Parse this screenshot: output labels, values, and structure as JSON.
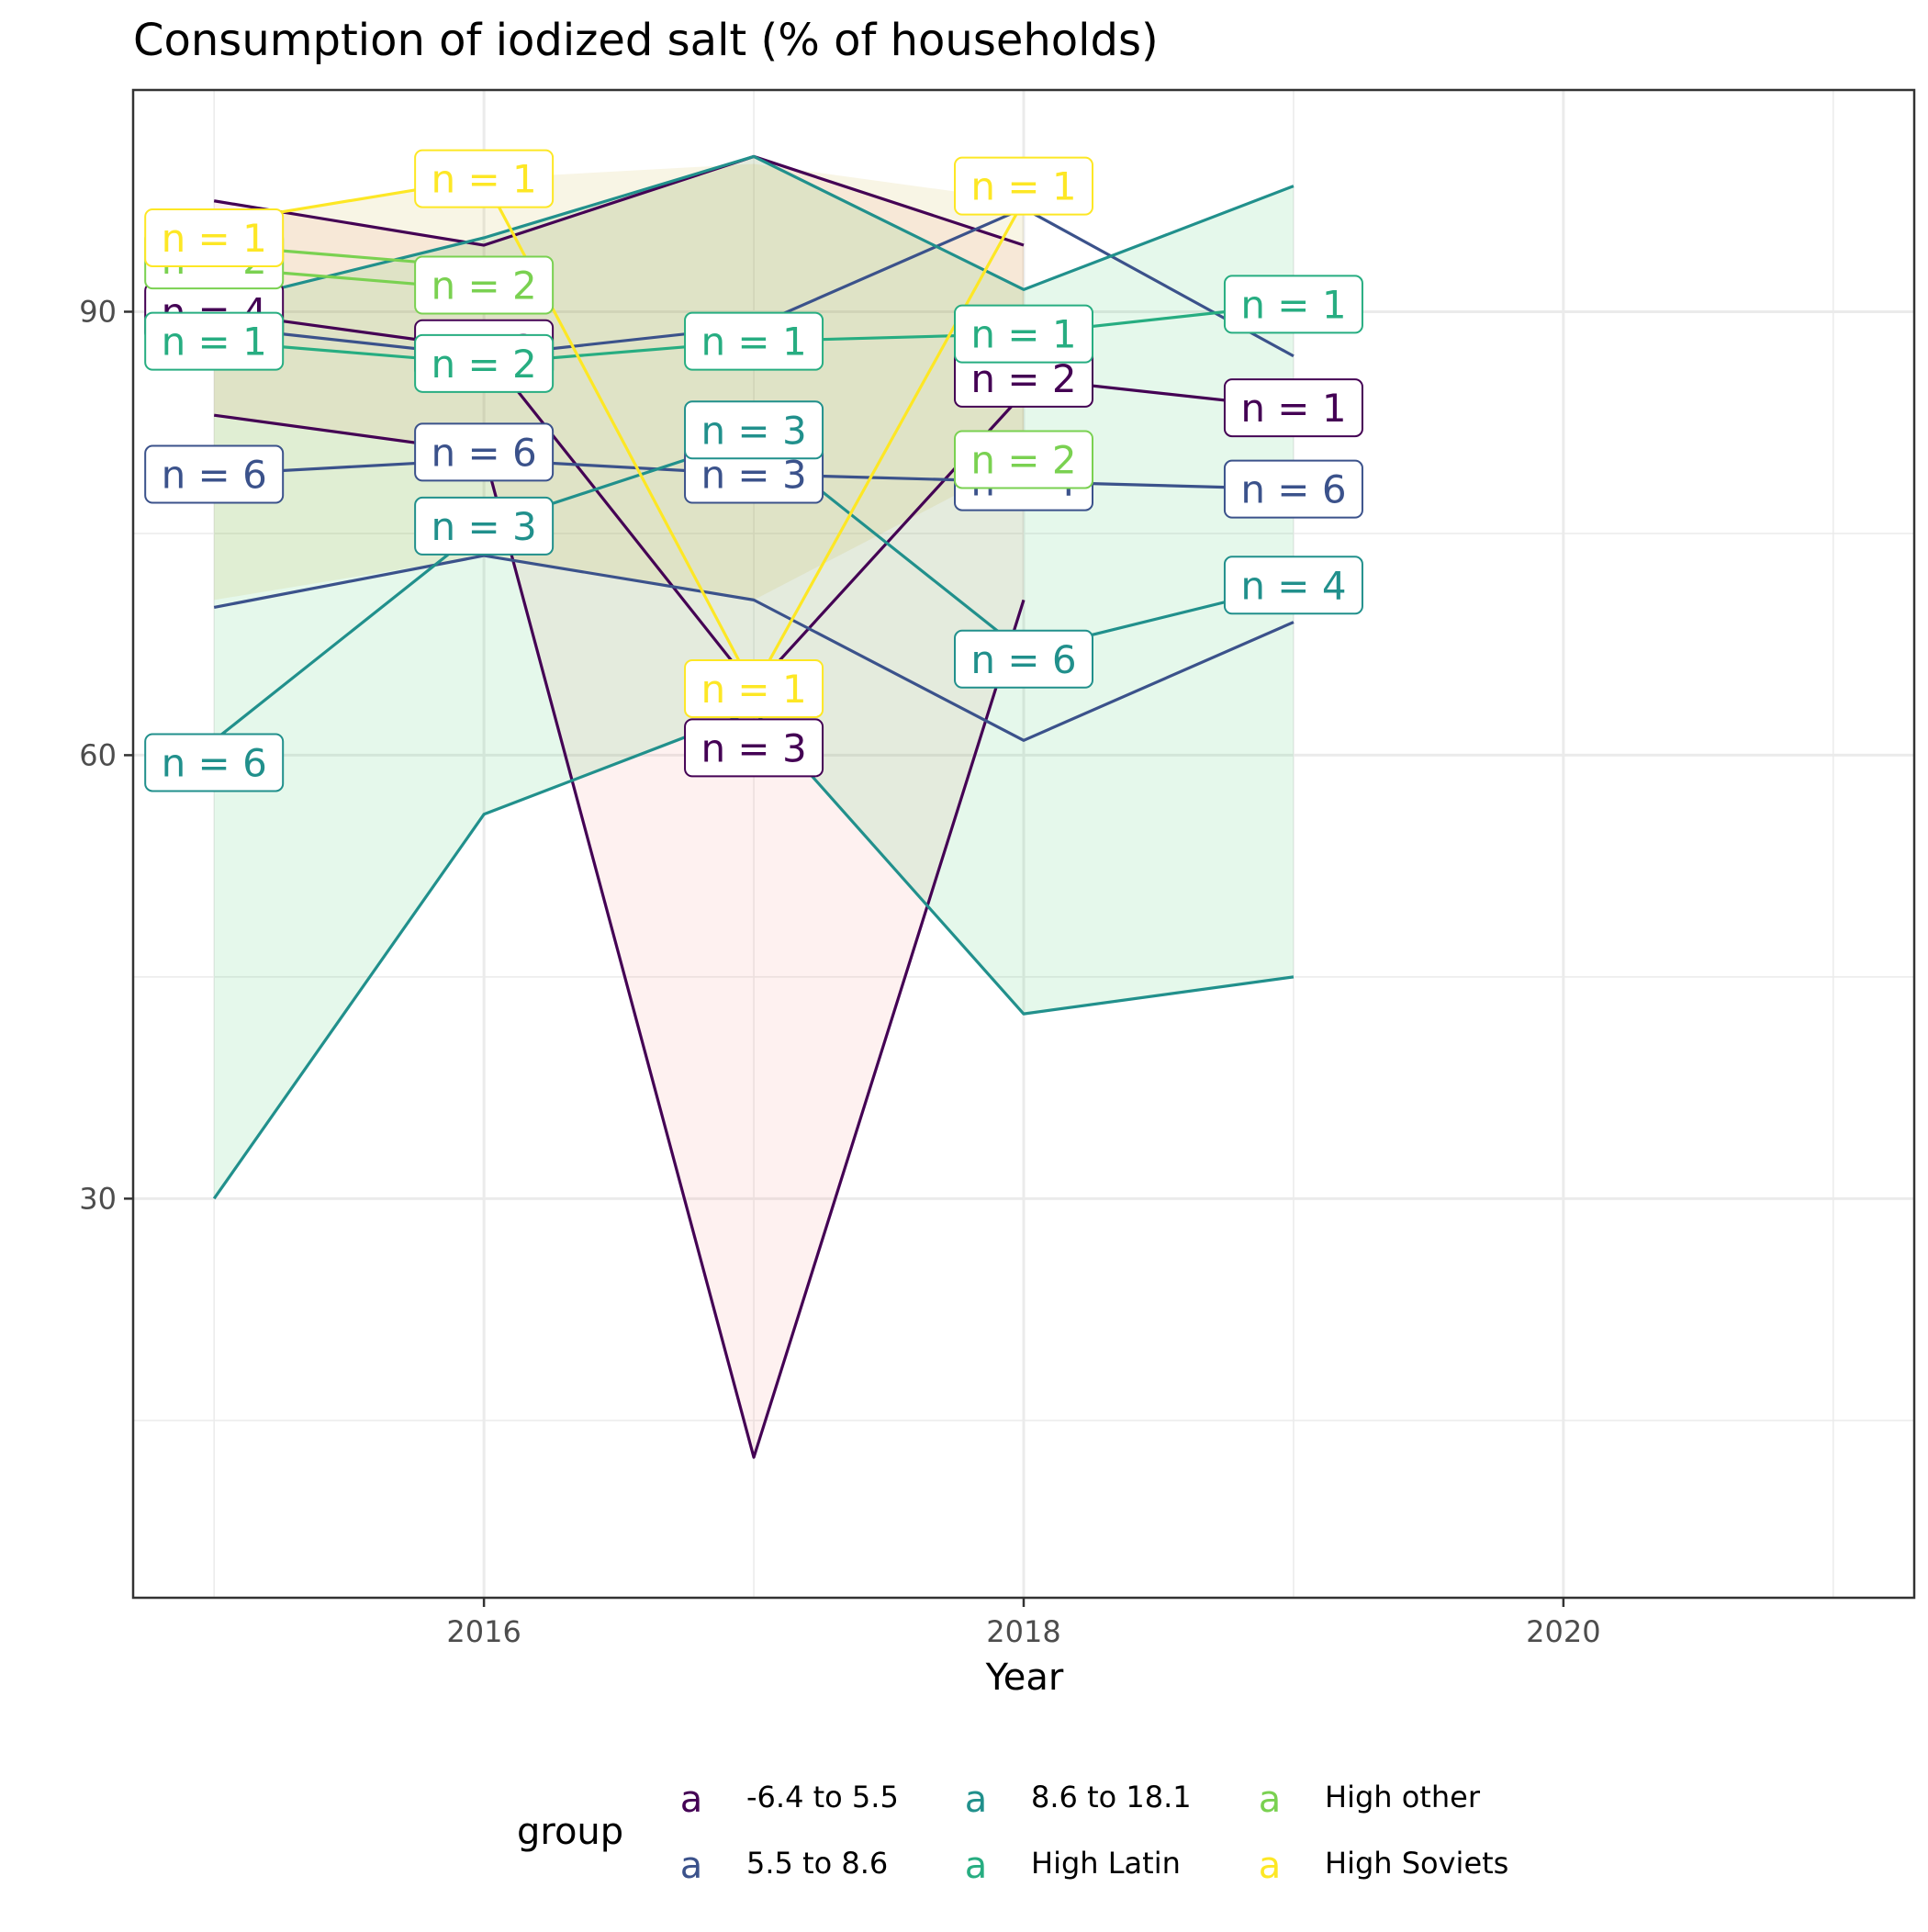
{
  "chart_data": {
    "type": "line",
    "title": "Consumption of iodized salt (% of households)",
    "xlabel": "Year",
    "ylabel": "",
    "xlim": [
      2014.7,
      2021.3
    ],
    "ylim": [
      3,
      105
    ],
    "x_ticks": [
      2016,
      2018,
      2020
    ],
    "y_ticks": [
      30,
      60,
      90
    ],
    "grid": true,
    "legend": {
      "title": "group",
      "position": "bottom",
      "key_glyph": "a",
      "entries": [
        "-6.4 to 5.5",
        "5.5 to 8.6",
        "8.6 to 18.1",
        "High Latin",
        "High other",
        "High Soviets"
      ]
    },
    "series": [
      {
        "name": "-6.4 to 5.5",
        "color": "#440154",
        "ribbon_color": "#F8766D",
        "lines": [
          {
            "x": [
              2015,
              2016,
              2017,
              2018
            ],
            "y": [
              97.5,
              94.5,
              100.5,
              94.5
            ]
          },
          {
            "x": [
              2015,
              2016,
              2017,
              2018
            ],
            "y": [
              90,
              87.5,
              64.5,
              84.5
            ]
          },
          {
            "x": [
              2015,
              2016,
              2017,
              2018
            ],
            "y": [
              83,
              80.5,
              12.5,
              70.5
            ]
          },
          {
            "x": [
              2018,
              2019
            ],
            "y": [
              85.5,
              83.5
            ]
          }
        ],
        "ribbon": {
          "x": [
            2015,
            2016,
            2017,
            2018
          ],
          "lower": [
            83,
            80.5,
            12.5,
            70.5
          ],
          "upper": [
            97.5,
            94.5,
            100.5,
            94.5
          ]
        },
        "labels": [
          {
            "x": 2015,
            "y": 90,
            "text": "n = 4"
          },
          {
            "x": 2016,
            "y": 87.5,
            "text": "n = 2"
          },
          {
            "x": 2017,
            "y": 60.5,
            "text": "n = 3"
          },
          {
            "x": 2018,
            "y": 85.5,
            "text": "n = 2"
          },
          {
            "x": 2019,
            "y": 83.5,
            "text": "n = 1"
          }
        ]
      },
      {
        "name": "5.5 to 8.6",
        "color": "#3B528B",
        "lines": [
          {
            "x": [
              2015,
              2016,
              2017,
              2018,
              2019
            ],
            "y": [
              89,
              87,
              89,
              97,
              87
            ]
          },
          {
            "x": [
              2015,
              2016,
              2017,
              2018,
              2019
            ],
            "y": [
              79,
              80,
              79,
              78.5,
              78
            ]
          },
          {
            "x": [
              2015,
              2016,
              2017,
              2018,
              2019
            ],
            "y": [
              70,
              73.5,
              70.5,
              61,
              69
            ]
          }
        ],
        "labels": [
          {
            "x": 2015,
            "y": 79,
            "text": "n = 6"
          },
          {
            "x": 2016,
            "y": 80.5,
            "text": "n = 6"
          },
          {
            "x": 2017,
            "y": 79,
            "text": "n = 3"
          },
          {
            "x": 2018,
            "y": 78.5,
            "text": "n = 4"
          },
          {
            "x": 2019,
            "y": 78,
            "text": "n = 6"
          }
        ]
      },
      {
        "name": "8.6 to 18.1",
        "color": "#21908C",
        "lines": [
          {
            "x": [
              2015,
              2016,
              2017,
              2018,
              2019
            ],
            "y": [
              90.5,
              95,
              100.5,
              91.5,
              98.5
            ]
          },
          {
            "x": [
              2015,
              2016,
              2017,
              2018,
              2019
            ],
            "y": [
              61,
              75.5,
              81.5,
              67,
              71.5
            ]
          },
          {
            "x": [
              2015,
              2016,
              2017,
              2018,
              2019
            ],
            "y": [
              30,
              56,
              63,
              42.5,
              45
            ]
          }
        ],
        "ribbon": {
          "x": [
            2015,
            2016,
            2017,
            2018,
            2019
          ],
          "lower": [
            30,
            56,
            63,
            42.5,
            45
          ],
          "upper": [
            90.5,
            95,
            100.5,
            91.5,
            98.5
          ]
        },
        "ribbon_color": "#00BA38",
        "labels": [
          {
            "x": 2015,
            "y": 59.5,
            "text": "n = 6"
          },
          {
            "x": 2016,
            "y": 75.5,
            "text": "n = 3"
          },
          {
            "x": 2017,
            "y": 82,
            "text": "n = 3"
          },
          {
            "x": 2018,
            "y": 66.5,
            "text": "n = 6"
          },
          {
            "x": 2019,
            "y": 71.5,
            "text": "n = 4"
          }
        ]
      },
      {
        "name": "High Latin",
        "color": "#27AD81",
        "lines": [
          {
            "x": [
              2015,
              2016,
              2017,
              2018,
              2019
            ],
            "y": [
              88,
              86.5,
              88,
              88.5,
              90.5
            ]
          }
        ],
        "labels": [
          {
            "x": 2015,
            "y": 88,
            "text": "n = 1"
          },
          {
            "x": 2016,
            "y": 86.5,
            "text": "n = 2"
          },
          {
            "x": 2017,
            "y": 88,
            "text": "n = 1"
          },
          {
            "x": 2018,
            "y": 88.5,
            "text": "n = 1"
          },
          {
            "x": 2019,
            "y": 90.5,
            "text": "n = 1"
          }
        ]
      },
      {
        "name": "High other",
        "color": "#7AD151",
        "lines": [
          {
            "x": [
              2015,
              2016
            ],
            "y": [
              94.5,
              93
            ]
          },
          {
            "x": [
              2015,
              2016
            ],
            "y": [
              93,
              91.5
            ]
          }
        ],
        "labels": [
          {
            "x": 2015,
            "y": 93.5,
            "text": "n = 2"
          },
          {
            "x": 2016,
            "y": 91.8,
            "text": "n = 2"
          },
          {
            "x": 2018,
            "y": 80,
            "text": "n = 2"
          }
        ]
      },
      {
        "name": "High Soviets",
        "color": "#FDE725",
        "lines": [
          {
            "x": [
              2015,
              2016,
              2017,
              2018
            ],
            "y": [
              96,
              99,
              64.5,
              97.5
            ]
          }
        ],
        "ribbon": {
          "x": [
            2015,
            2016,
            2017,
            2018
          ],
          "lower": [
            70.5,
            73.5,
            70.5,
            80
          ],
          "upper": [
            96,
            99,
            100,
            97.5
          ]
        },
        "ribbon_color": "#B79F00",
        "labels": [
          {
            "x": 2015,
            "y": 95,
            "text": "n = 1"
          },
          {
            "x": 2016,
            "y": 99,
            "text": "n = 1"
          },
          {
            "x": 2017,
            "y": 64.5,
            "text": "n = 1"
          },
          {
            "x": 2018,
            "y": 98.5,
            "text": "n = 1"
          }
        ]
      }
    ]
  }
}
